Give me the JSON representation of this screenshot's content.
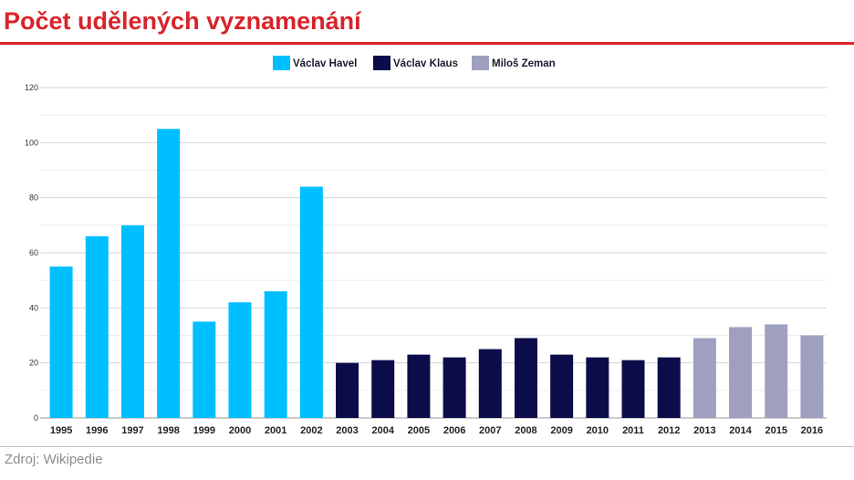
{
  "title": "Počet udělených vyznamenání",
  "source": "Zdroj: Wikipedie",
  "chart_data": {
    "type": "bar",
    "title": "Počet udělených vyznamenání",
    "xlabel": "",
    "ylabel": "",
    "ylim": [
      0,
      120
    ],
    "yticks": [
      0,
      20,
      40,
      60,
      80,
      100,
      120
    ],
    "grid": true,
    "legend_position": "top-center",
    "categories": [
      "1995",
      "1996",
      "1997",
      "1998",
      "1999",
      "2000",
      "2001",
      "2002",
      "2003",
      "2004",
      "2005",
      "2006",
      "2007",
      "2008",
      "2009",
      "2010",
      "2011",
      "2012",
      "2013",
      "2014",
      "2015",
      "2016"
    ],
    "series": [
      {
        "name": "Václav Havel",
        "color": "#00bfff",
        "values": [
          55,
          66,
          70,
          105,
          35,
          42,
          46,
          84,
          null,
          null,
          null,
          null,
          null,
          null,
          null,
          null,
          null,
          null,
          null,
          null,
          null,
          null
        ]
      },
      {
        "name": "Václav Klaus",
        "color": "#0c0c4a",
        "values": [
          null,
          null,
          null,
          null,
          null,
          null,
          null,
          null,
          20,
          21,
          23,
          22,
          25,
          29,
          23,
          22,
          21,
          22,
          null,
          null,
          null,
          null
        ]
      },
      {
        "name": "Miloš Zeman",
        "color": "#9fa0c0",
        "values": [
          null,
          null,
          null,
          null,
          null,
          null,
          null,
          null,
          null,
          null,
          null,
          null,
          null,
          null,
          null,
          null,
          null,
          null,
          29,
          33,
          34,
          30
        ]
      }
    ]
  }
}
